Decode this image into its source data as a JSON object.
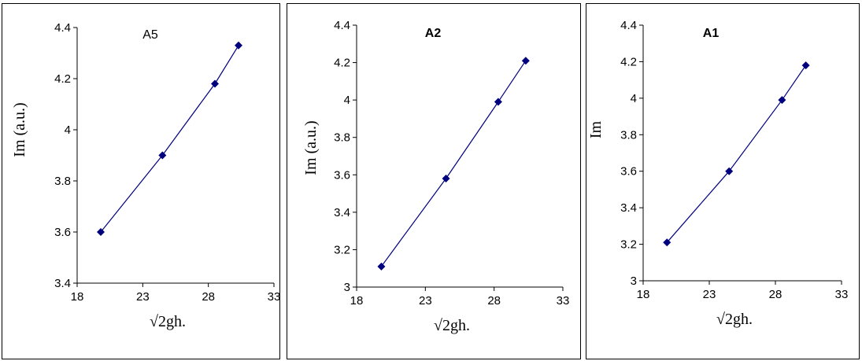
{
  "chart_data": [
    {
      "type": "line",
      "title": "A5",
      "xlabel": "√2gh.",
      "ylabel": "Im (a.u.)",
      "xlim": [
        18,
        33
      ],
      "ylim": [
        3.4,
        4.4
      ],
      "xticks": [
        "18",
        "23",
        "28",
        "33"
      ],
      "yticks": [
        "3.4",
        "3.6",
        "3.8",
        "4",
        "4.2",
        "4.4"
      ],
      "grid": false,
      "x": [
        19.8,
        24.5,
        28.5,
        30.3
      ],
      "y": [
        3.6,
        3.9,
        4.18,
        4.33
      ],
      "color": "#00007f"
    },
    {
      "type": "line",
      "title": "A2",
      "xlabel": "√2gh.",
      "ylabel": "Im (a.u.)",
      "xlim": [
        18,
        33
      ],
      "ylim": [
        3.0,
        4.4
      ],
      "xticks": [
        "18",
        "23",
        "28",
        "33"
      ],
      "yticks": [
        "3",
        "3.2",
        "3.4",
        "3.6",
        "3.8",
        "4",
        "4.2",
        "4.4"
      ],
      "grid": false,
      "x": [
        19.8,
        24.5,
        28.3,
        30.3
      ],
      "y": [
        3.11,
        3.58,
        3.99,
        4.21
      ],
      "color": "#00007f"
    },
    {
      "type": "line",
      "title": "A1",
      "xlabel": "√2gh.",
      "ylabel": "Im",
      "xlim": [
        18,
        33
      ],
      "ylim": [
        3.0,
        4.4
      ],
      "xticks": [
        "18",
        "23",
        "28",
        "33"
      ],
      "yticks": [
        "3",
        "3.2",
        "3.4",
        "3.6",
        "3.8",
        "4",
        "4.2",
        "4.4"
      ],
      "grid": false,
      "x": [
        19.8,
        24.5,
        28.5,
        30.3
      ],
      "y": [
        3.21,
        3.6,
        3.99,
        4.18
      ],
      "color": "#00007f"
    }
  ]
}
